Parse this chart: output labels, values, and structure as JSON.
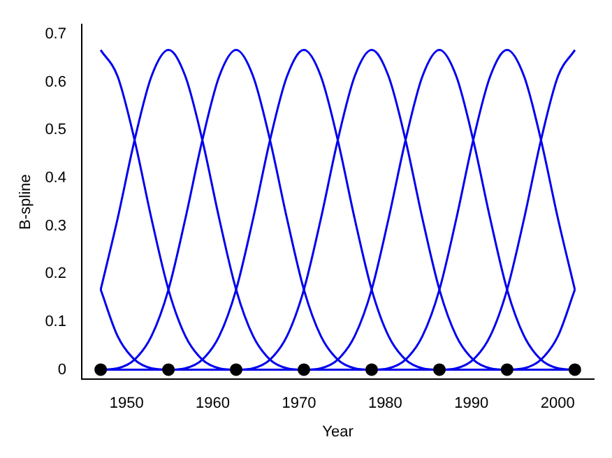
{
  "chart_data": {
    "type": "line",
    "xlabel": "Year",
    "ylabel": "B-spline",
    "xlim": [
      1944.8,
      2004.2
    ],
    "ylim": [
      -0.02,
      0.72
    ],
    "xticks": [
      1950,
      1960,
      1970,
      1980,
      1990,
      2000
    ],
    "yticks": [
      0,
      0.1,
      0.2,
      0.3,
      0.4,
      0.5,
      0.6,
      0.7
    ],
    "grid": false,
    "legend": false,
    "x": [
      1947,
      1948.96,
      1950.93,
      1952.89,
      1954.86,
      1956.82,
      1958.79,
      1960.75,
      1962.71,
      1964.68,
      1966.64,
      1968.61,
      1970.57,
      1972.54,
      1974.5,
      1976.46,
      1978.43,
      1980.39,
      1982.36,
      1984.32,
      1986.29,
      1988.25,
      1990.21,
      1992.18,
      1994.14,
      1996.11,
      1998.07,
      2000.04,
      2002
    ],
    "series": [
      {
        "color": "#0000ee",
        "marker": "none",
        "values": [
          0.167,
          0.07,
          0.021,
          0.003,
          0,
          null,
          null,
          null,
          null,
          null,
          null,
          null,
          null,
          null,
          null,
          null,
          null,
          null,
          null,
          null,
          null,
          null,
          null,
          null,
          null,
          null,
          null,
          null,
          null
        ]
      },
      {
        "color": "#0000ee",
        "marker": "none",
        "values": [
          0.667,
          0.612,
          0.479,
          0.315,
          0.167,
          0.07,
          0.021,
          0.003,
          0,
          0,
          0,
          0,
          0,
          0,
          0,
          0,
          0,
          0,
          0,
          0,
          0,
          0,
          0,
          0,
          0,
          0,
          0,
          0,
          0
        ]
      },
      {
        "color": "#0000ee",
        "marker": "none",
        "values": [
          0.167,
          0.315,
          0.479,
          0.612,
          0.667,
          0.612,
          0.479,
          0.315,
          0.167,
          0.07,
          0.021,
          0.003,
          0,
          0,
          0,
          0,
          0,
          0,
          0,
          0,
          0,
          0,
          0,
          0,
          0,
          0,
          0,
          0,
          0
        ]
      },
      {
        "color": "#0000ee",
        "marker": "none",
        "values": [
          0,
          0.003,
          0.021,
          0.07,
          0.167,
          0.315,
          0.479,
          0.612,
          0.667,
          0.612,
          0.479,
          0.315,
          0.167,
          0.07,
          0.021,
          0.003,
          0,
          0,
          0,
          0,
          0,
          0,
          0,
          0,
          0,
          0,
          0,
          0,
          0
        ]
      },
      {
        "color": "#0000ee",
        "marker": "none",
        "values": [
          0,
          0,
          0,
          0,
          0,
          0.003,
          0.021,
          0.07,
          0.167,
          0.315,
          0.479,
          0.612,
          0.667,
          0.612,
          0.479,
          0.315,
          0.167,
          0.07,
          0.021,
          0.003,
          0,
          0,
          0,
          0,
          0,
          0,
          0,
          0,
          0
        ]
      },
      {
        "color": "#0000ee",
        "marker": "none",
        "values": [
          0,
          0,
          0,
          0,
          0,
          0,
          0,
          0,
          0,
          0.003,
          0.021,
          0.07,
          0.167,
          0.315,
          0.479,
          0.612,
          0.667,
          0.612,
          0.479,
          0.315,
          0.167,
          0.07,
          0.021,
          0.003,
          0,
          0,
          0,
          0,
          0
        ]
      },
      {
        "color": "#0000ee",
        "marker": "none",
        "values": [
          0,
          0,
          0,
          0,
          0,
          0,
          0,
          0,
          0,
          0,
          0,
          0,
          0,
          0.003,
          0.021,
          0.07,
          0.167,
          0.315,
          0.479,
          0.612,
          0.667,
          0.612,
          0.479,
          0.315,
          0.167,
          0.07,
          0.021,
          0.003,
          0
        ]
      },
      {
        "color": "#0000ee",
        "marker": "none",
        "values": [
          0,
          0,
          0,
          0,
          0,
          0,
          0,
          0,
          0,
          0,
          0,
          0,
          0,
          0,
          0,
          0,
          0,
          0.003,
          0.021,
          0.07,
          0.167,
          0.315,
          0.479,
          0.612,
          0.667,
          0.612,
          0.479,
          0.315,
          0.167
        ]
      },
      {
        "color": "#0000ee",
        "marker": "none",
        "values": [
          0,
          0,
          0,
          0,
          0,
          0,
          0,
          0,
          0,
          0,
          0,
          0,
          0,
          0,
          0,
          0,
          0,
          0,
          0,
          0,
          0,
          0.003,
          0.021,
          0.07,
          0.167,
          0.315,
          0.479,
          0.612,
          0.667
        ]
      },
      {
        "color": "#0000ee",
        "marker": "none",
        "values": [
          null,
          null,
          null,
          null,
          null,
          null,
          null,
          null,
          null,
          null,
          null,
          null,
          null,
          null,
          null,
          null,
          null,
          null,
          null,
          null,
          null,
          null,
          null,
          null,
          0,
          0.003,
          0.021,
          0.07,
          0.167
        ]
      },
      {
        "type": "scatter",
        "color": "#000000",
        "marker": "circle",
        "x": [
          1947,
          1954.86,
          1962.71,
          1970.57,
          1978.43,
          1986.29,
          1994.14,
          2002
        ],
        "values": [
          0,
          0,
          0,
          0,
          0,
          0,
          0,
          0
        ]
      }
    ]
  }
}
